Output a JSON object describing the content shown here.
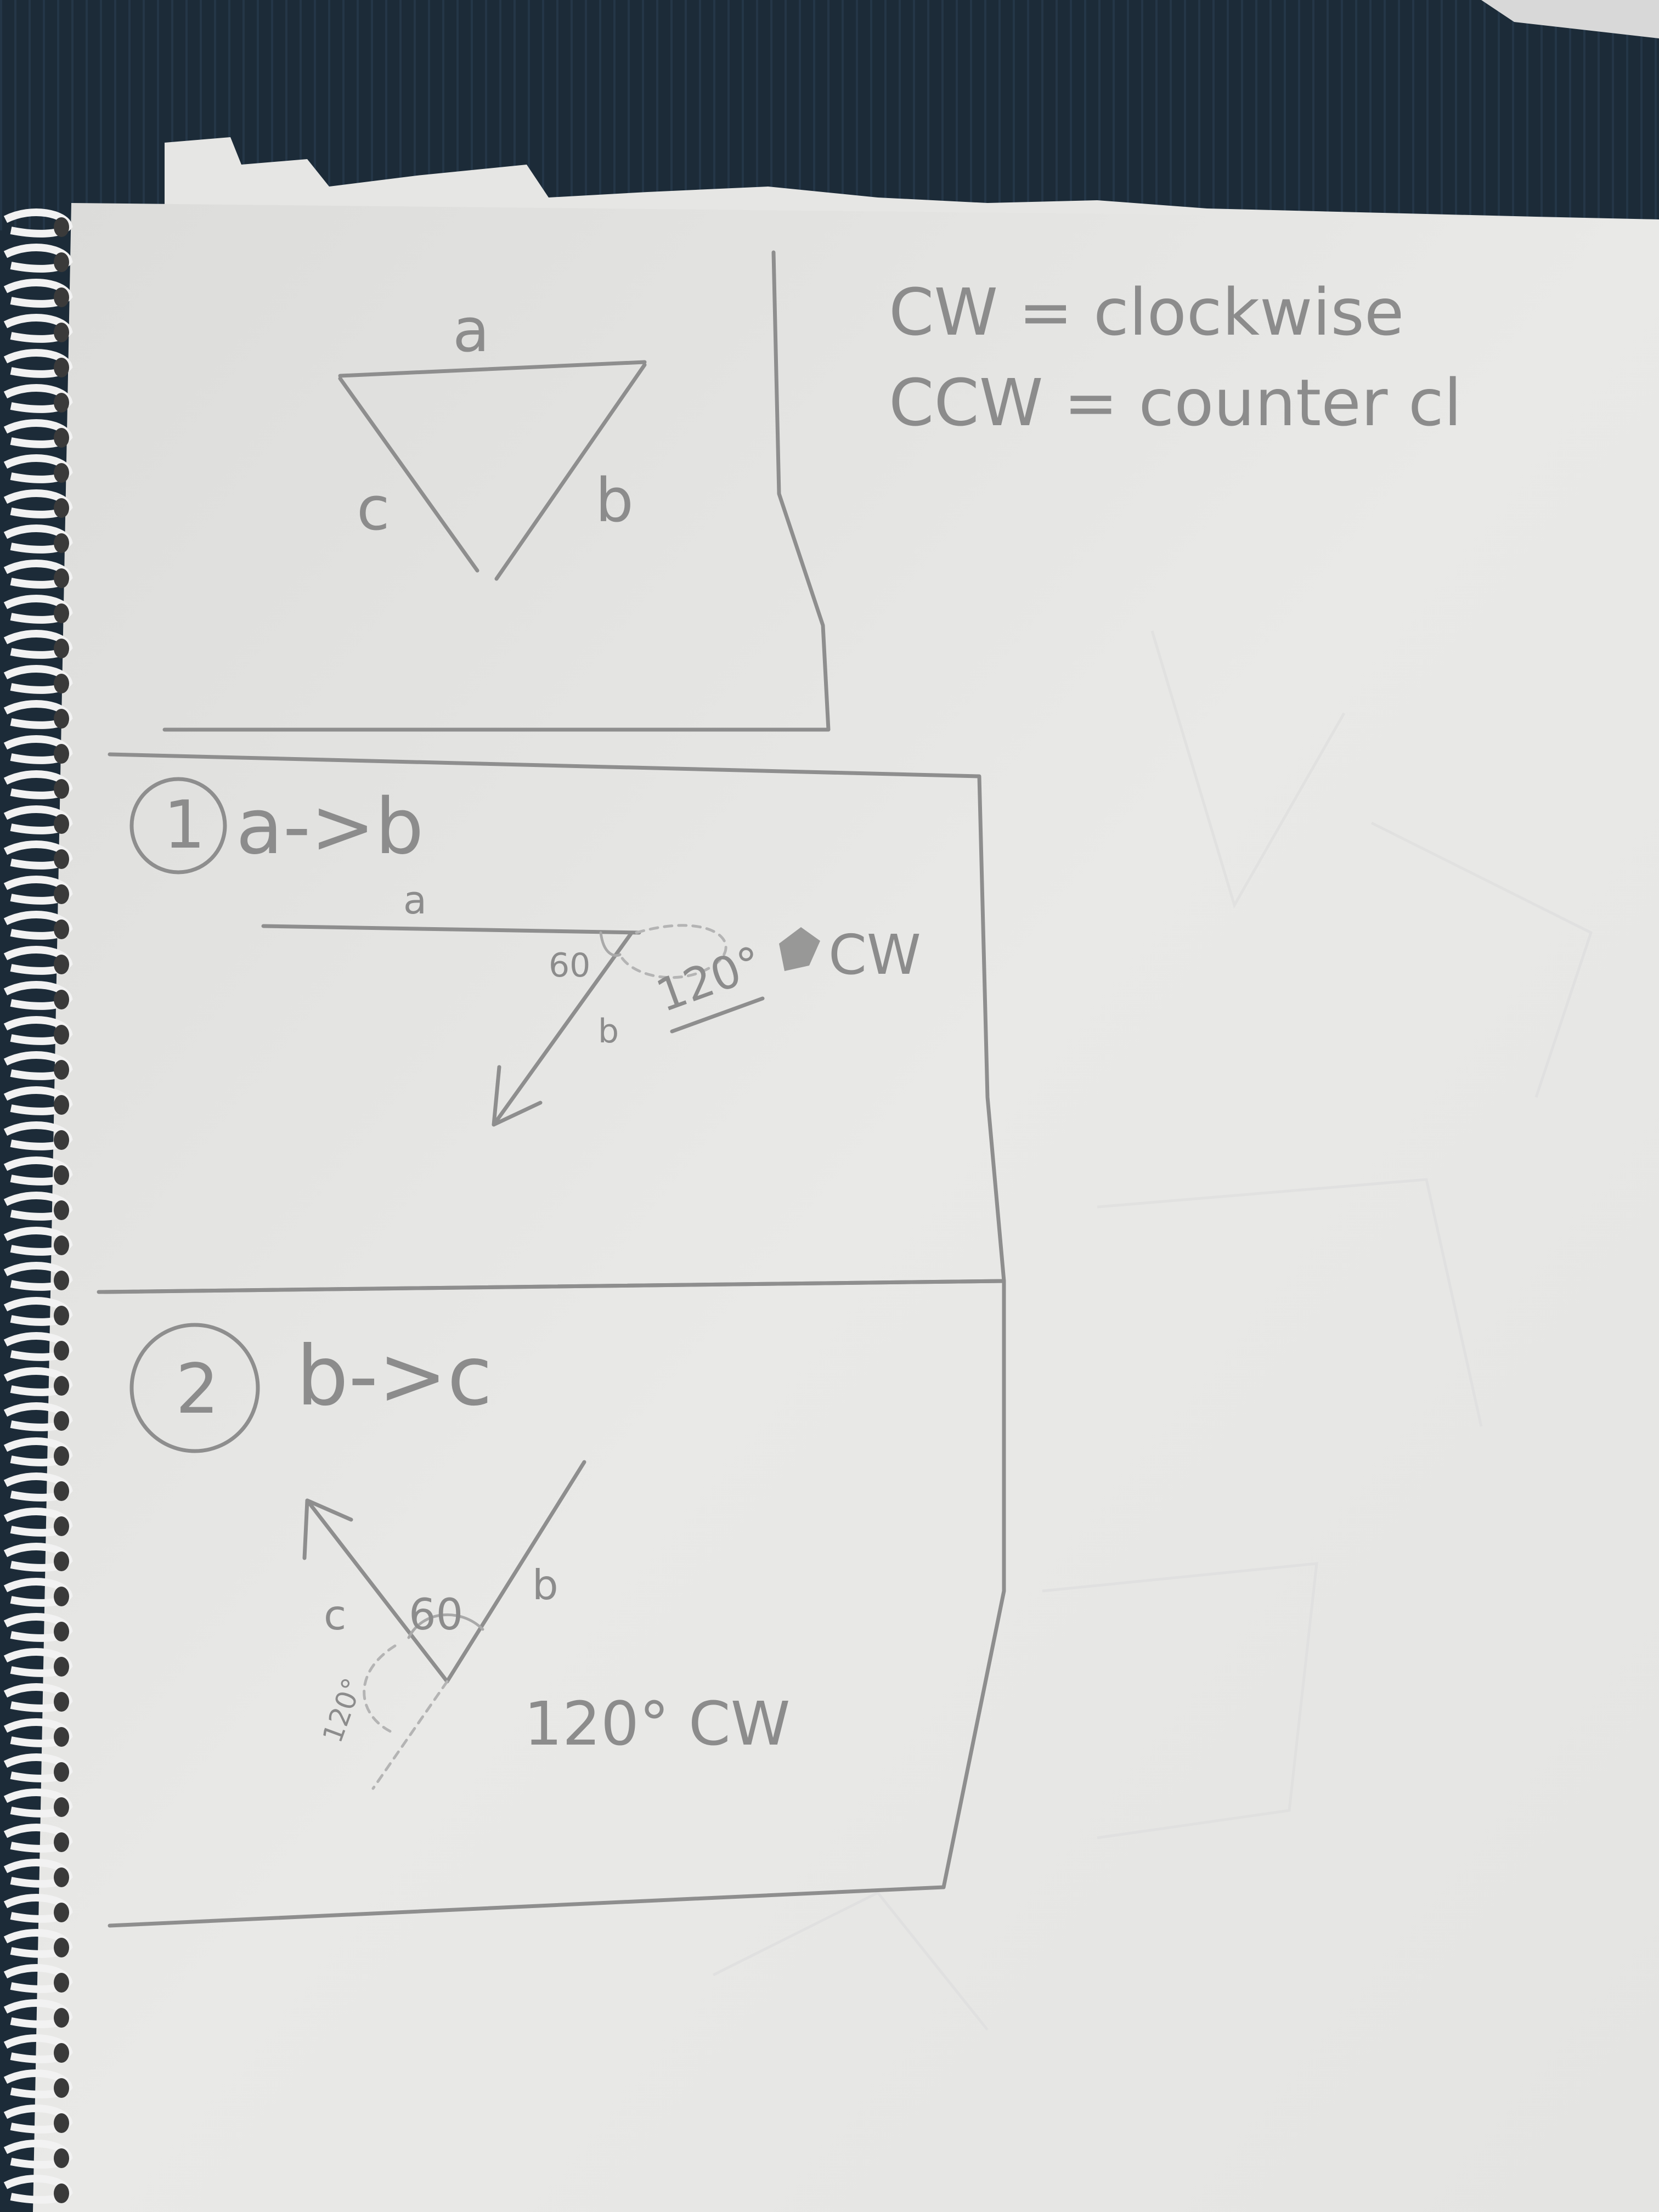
{
  "legend": {
    "cw_line": "CW = clockwise",
    "ccw_line": "CCW = counter cl"
  },
  "box_triangle": {
    "label_a": "a",
    "label_b": "b",
    "label_c": "c"
  },
  "step1": {
    "number": "1",
    "heading": "a->b",
    "label_a": "a",
    "label_b": "b",
    "angle_inner": "60",
    "angle_turn": "120°",
    "direction": "CW"
  },
  "step2": {
    "number": "2",
    "heading": "b->c",
    "label_b": "b",
    "label_c": "c",
    "angle_inner": "60",
    "angle_small": "120°",
    "angle_turn": "120° CW"
  },
  "colors": {
    "paper": "#e9e9e7",
    "pencil": "#8e8e8e",
    "background_fabric": "#1c2b38"
  }
}
